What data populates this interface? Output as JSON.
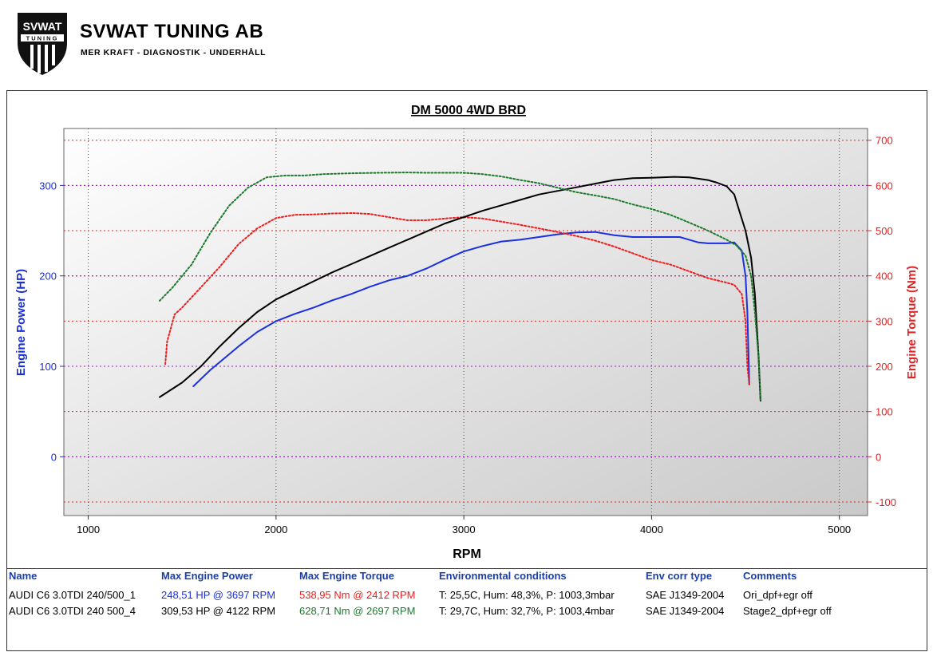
{
  "brand": {
    "name": "SVWAT TUNING AB",
    "tagline": "MER KRAFT - DIAGNOSTIK - UNDERHÅLL",
    "logo_text": "SVWAT",
    "logo_subtext": "TUNING"
  },
  "colors": {
    "power_axis": "#1c2fd0",
    "torque_axis": "#e02424",
    "header_text": "#1a3fa8",
    "ori_power": "#1a2fe0",
    "ori_torque": "#ee1c1c",
    "stage2_power": "#000000",
    "stage2_torque": "#1c7a2c"
  },
  "chart_data": {
    "type": "line",
    "title": "DM 5000 4WD BRD",
    "xlabel": "RPM",
    "ylabel_left": "Engine Power (HP)",
    "ylabel_right": "Engine Torque (Nm)",
    "xlim": [
      870,
      5150
    ],
    "ylim_left": [
      -65,
      363
    ],
    "ylim_right": [
      -130,
      726
    ],
    "xticks": [
      1000,
      2000,
      3000,
      4000,
      5000
    ],
    "yticks_left": [
      0,
      100,
      200,
      300
    ],
    "yticks_right": [
      -100,
      0,
      100,
      200,
      300,
      400,
      500,
      600,
      700
    ],
    "grid": true,
    "series": [
      {
        "name": "AUDI C6 3.0TDI 240/500_1",
        "quantity": "Engine Power (HP)",
        "axis": "left",
        "color": "#1a2fe0",
        "x": [
          1560,
          1650,
          1800,
          1900,
          2000,
          2100,
          2200,
          2300,
          2400,
          2500,
          2600,
          2700,
          2800,
          2900,
          3000,
          3100,
          3200,
          3300,
          3400,
          3500,
          3600,
          3700,
          3800,
          3900,
          4000,
          4100,
          4150,
          4200,
          4250,
          4300,
          4400,
          4440,
          4480,
          4500,
          4510,
          4520
        ],
        "y": [
          78,
          96,
          122,
          138,
          150,
          158,
          165,
          173,
          180,
          188,
          195,
          200,
          208,
          218,
          227,
          233,
          238,
          240,
          243,
          246,
          248,
          248.5,
          245,
          243,
          243,
          243,
          243,
          240,
          237,
          236,
          236,
          237,
          228,
          200,
          160,
          80
        ]
      },
      {
        "name": "AUDI C6 3.0TDI 240/500_1",
        "quantity": "Engine Torque (Nm)",
        "axis": "right",
        "color": "#ee1c1c",
        "x": [
          1410,
          1420,
          1460,
          1500,
          1600,
          1700,
          1800,
          1900,
          2000,
          2100,
          2200,
          2300,
          2412,
          2500,
          2600,
          2700,
          2800,
          2900,
          3000,
          3100,
          3200,
          3300,
          3400,
          3500,
          3600,
          3700,
          3800,
          3900,
          4000,
          4100,
          4200,
          4300,
          4400,
          4440,
          4480,
          4500,
          4510,
          4520
        ],
        "y": [
          205,
          255,
          315,
          330,
          375,
          420,
          470,
          505,
          528,
          535,
          536,
          538,
          538.95,
          537,
          530,
          523,
          523,
          527,
          530,
          527,
          520,
          513,
          505,
          497,
          488,
          478,
          465,
          450,
          435,
          425,
          410,
          395,
          385,
          380,
          360,
          300,
          200,
          160
        ]
      },
      {
        "name": "AUDI C6 3.0TDI 240 500_4",
        "quantity": "Engine Power (HP)",
        "axis": "left",
        "color": "#000000",
        "x": [
          1380,
          1500,
          1600,
          1700,
          1800,
          1900,
          2000,
          2100,
          2200,
          2300,
          2400,
          2500,
          2600,
          2700,
          2800,
          2900,
          3000,
          3100,
          3200,
          3300,
          3400,
          3500,
          3600,
          3700,
          3800,
          3900,
          4000,
          4122,
          4200,
          4300,
          4350,
          4400,
          4440,
          4470,
          4500,
          4530,
          4550,
          4570,
          4580
        ],
        "y": [
          66,
          82,
          100,
          122,
          142,
          160,
          174,
          184,
          194,
          204,
          213,
          222,
          231,
          240,
          249,
          258,
          265,
          272,
          278,
          284,
          290,
          294,
          298,
          302,
          306,
          308,
          308.5,
          309.5,
          309,
          306,
          303,
          299,
          290,
          270,
          250,
          220,
          180,
          110,
          62
        ]
      },
      {
        "name": "AUDI C6 3.0TDI 240 500_4",
        "quantity": "Engine Torque (Nm)",
        "axis": "right",
        "color": "#1c7a2c",
        "x": [
          1380,
          1450,
          1550,
          1650,
          1750,
          1850,
          1950,
          2050,
          2150,
          2250,
          2400,
          2550,
          2697,
          2800,
          2900,
          3000,
          3100,
          3200,
          3300,
          3400,
          3500,
          3600,
          3700,
          3800,
          3900,
          4000,
          4100,
          4200,
          4300,
          4350,
          4400,
          4450,
          4500,
          4530,
          4550,
          4570,
          4580
        ],
        "y": [
          345,
          375,
          425,
          495,
          555,
          595,
          618,
          622,
          622,
          625,
          627,
          628,
          628.71,
          628,
          628,
          628,
          625,
          620,
          612,
          605,
          595,
          585,
          578,
          570,
          558,
          548,
          535,
          518,
          500,
          490,
          480,
          468,
          445,
          400,
          320,
          220,
          125
        ]
      }
    ],
    "legend": {
      "headers": [
        "Name",
        "Max Engine Power",
        "Max Engine Torque",
        "Environmental conditions",
        "Env corr type",
        "Comments"
      ],
      "rows": [
        {
          "name": "AUDI C6 3.0TDI 240/500_1",
          "max_power": "248,51 HP @ 3697 RPM",
          "max_torque": "538,95 Nm @ 2412 RPM",
          "env": "T: 25,5C, Hum: 48,3%, P: 1003,3mbar",
          "corr": "SAE J1349-2004",
          "comment": "Ori_dpf+egr off",
          "power_color": "#1a2fe0",
          "torque_color": "#ee1c1c"
        },
        {
          "name": "AUDI C6 3.0TDI 240 500_4",
          "max_power": "309,53 HP @ 4122 RPM",
          "max_torque": "628,71 Nm @ 2697 RPM",
          "env": "T: 29,7C, Hum: 32,7%, P: 1003,4mbar",
          "corr": "SAE J1349-2004",
          "comment": "Stage2_dpf+egr off",
          "power_color": "#000000",
          "torque_color": "#1c7a2c"
        }
      ]
    }
  }
}
